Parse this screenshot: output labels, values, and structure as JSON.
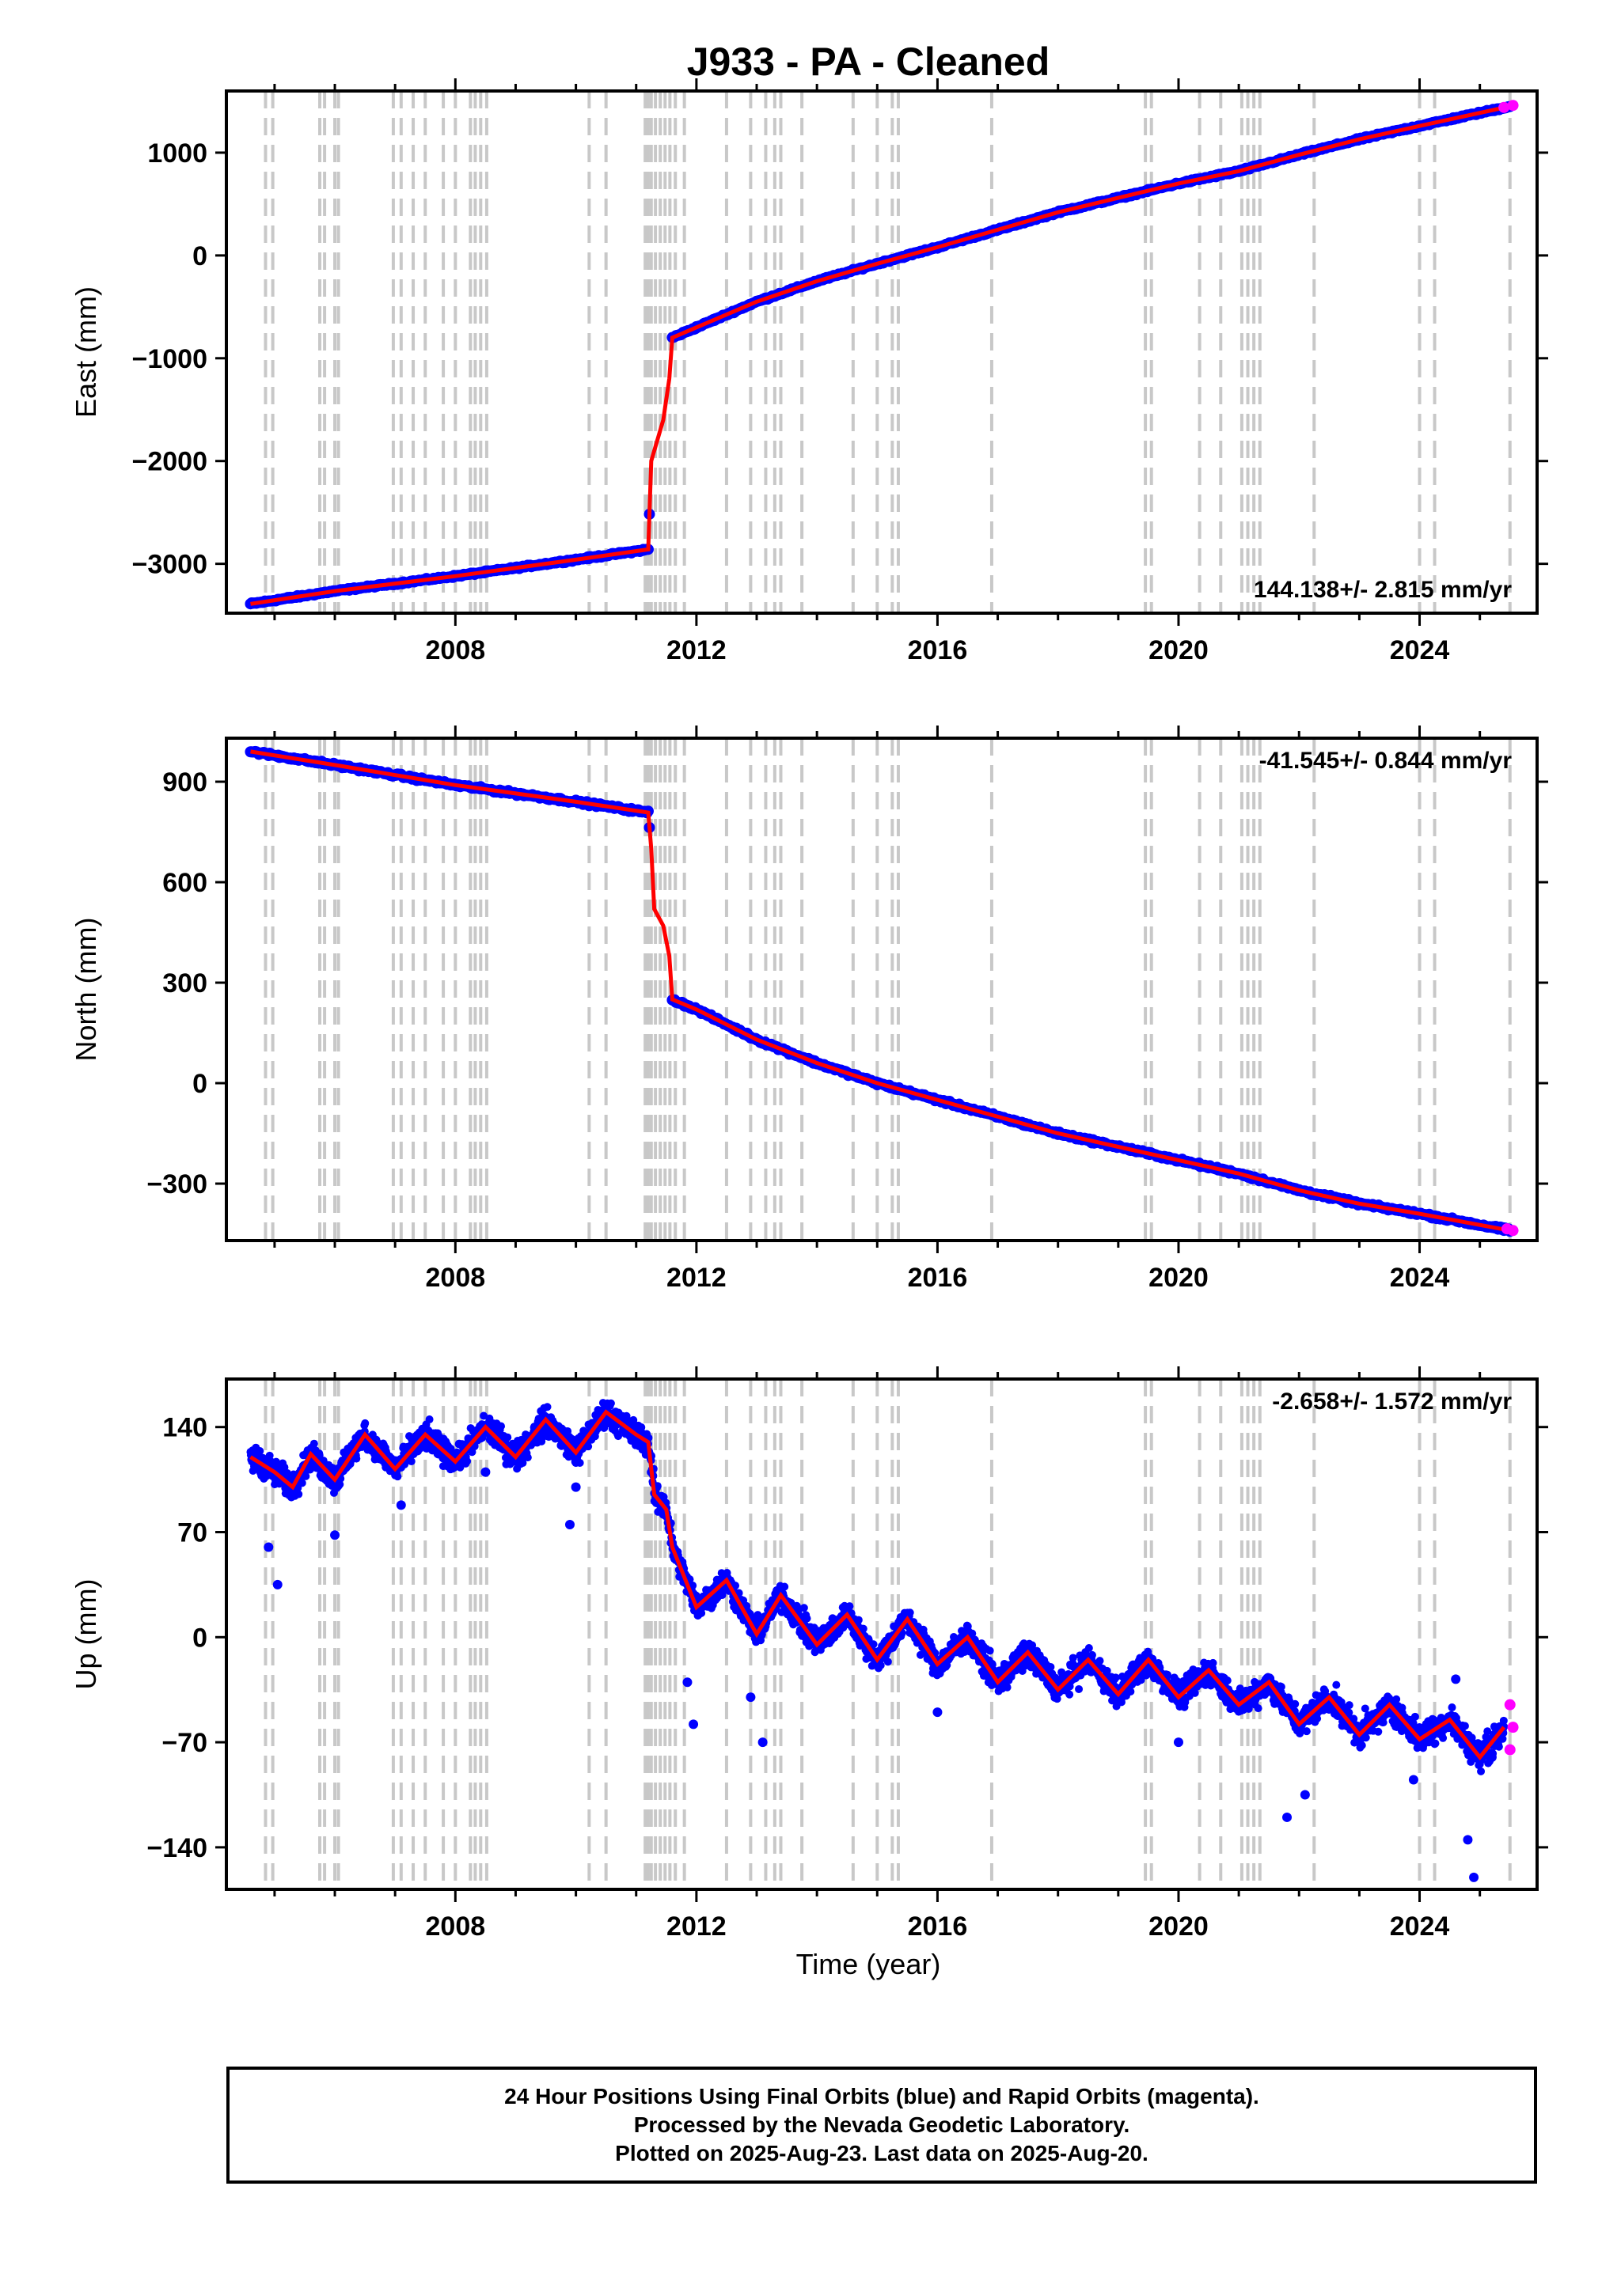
{
  "title": "J933  - PA - Cleaned",
  "x_axis": {
    "label": "Time (year)",
    "range": [
      2004.2,
      2025.95
    ],
    "ticks": [
      2008,
      2012,
      2016,
      2020,
      2024
    ],
    "tick_labels": [
      "2008",
      "2012",
      "2016",
      "2020",
      "2024"
    ]
  },
  "chart_data": [
    {
      "type": "scatter",
      "panel": "east",
      "ylabel": "East (mm)",
      "ylim": [
        -3480,
        1600
      ],
      "yticks": [
        -3000,
        -2000,
        -1000,
        0,
        1000
      ],
      "ytick_labels": [
        "−3000",
        "−2000",
        "−1000",
        "0",
        "1000"
      ],
      "rate_label": "144.138+/- 2.815 mm/yr",
      "rate_position": "bottom-right",
      "trend": [
        [
          2004.6,
          -3390
        ],
        [
          2006.0,
          -3265
        ],
        [
          2008.0,
          -3120
        ],
        [
          2010.0,
          -2960
        ],
        [
          2011.2,
          -2860
        ],
        [
          2011.2,
          -2860
        ],
        [
          2011.25,
          -2000
        ],
        [
          2011.35,
          -1800
        ],
        [
          2011.45,
          -1600
        ],
        [
          2011.55,
          -1200
        ],
        [
          2011.6,
          -800
        ],
        [
          2012.0,
          -700
        ],
        [
          2013.0,
          -450
        ],
        [
          2014.0,
          -250
        ],
        [
          2015.0,
          -80
        ],
        [
          2016.0,
          80
        ],
        [
          2017.0,
          250
        ],
        [
          2018.0,
          420
        ],
        [
          2019.0,
          560
        ],
        [
          2020.0,
          700
        ],
        [
          2021.0,
          820
        ],
        [
          2022.0,
          980
        ],
        [
          2023.0,
          1130
        ],
        [
          2024.0,
          1260
        ],
        [
          2025.5,
          1450
        ]
      ],
      "rapid_points": [
        [
          2025.4,
          1440
        ],
        [
          2025.55,
          1460
        ]
      ],
      "rate_mm_per_yr": 144.138,
      "rate_uncertainty": 2.815
    },
    {
      "type": "scatter",
      "panel": "north",
      "ylabel": "North (mm)",
      "ylim": [
        -470,
        1030
      ],
      "yticks": [
        -300,
        0,
        300,
        600,
        900
      ],
      "ytick_labels": [
        "−300",
        "0",
        "300",
        "600",
        "900"
      ],
      "rate_label": "-41.545+/- 0.844 mm/yr",
      "rate_position": "top-right",
      "trend": [
        [
          2004.6,
          990
        ],
        [
          2006.0,
          950
        ],
        [
          2008.0,
          890
        ],
        [
          2010.0,
          840
        ],
        [
          2011.2,
          808
        ],
        [
          2011.25,
          700
        ],
        [
          2011.3,
          520
        ],
        [
          2011.45,
          470
        ],
        [
          2011.55,
          380
        ],
        [
          2011.6,
          250
        ],
        [
          2012.0,
          220
        ],
        [
          2013.0,
          130
        ],
        [
          2014.0,
          60
        ],
        [
          2015.0,
          0
        ],
        [
          2016.0,
          -50
        ],
        [
          2017.0,
          -100
        ],
        [
          2018.0,
          -150
        ],
        [
          2019.0,
          -190
        ],
        [
          2020.0,
          -230
        ],
        [
          2021.0,
          -270
        ],
        [
          2022.0,
          -320
        ],
        [
          2023.0,
          -360
        ],
        [
          2024.0,
          -390
        ],
        [
          2025.5,
          -440
        ]
      ],
      "rapid_points": [
        [
          2025.45,
          -435
        ],
        [
          2025.55,
          -440
        ]
      ],
      "rate_mm_per_yr": -41.545,
      "rate_uncertainty": 0.844
    },
    {
      "type": "scatter",
      "panel": "up",
      "ylabel": "Up (mm)",
      "ylim": [
        -168,
        172
      ],
      "yticks": [
        -140,
        -70,
        0,
        70,
        140
      ],
      "ytick_labels": [
        "−140",
        "−70",
        "0",
        "70",
        "140"
      ],
      "rate_label": "-2.658+/- 1.572 mm/yr",
      "rate_position": "top-right",
      "trend_note_free": true,
      "trend": [
        [
          2004.6,
          120
        ],
        [
          2005.0,
          110
        ],
        [
          2005.3,
          100
        ],
        [
          2005.6,
          122
        ],
        [
          2006.0,
          105
        ],
        [
          2006.5,
          135
        ],
        [
          2007.0,
          112
        ],
        [
          2007.5,
          135
        ],
        [
          2008.0,
          117
        ],
        [
          2008.5,
          140
        ],
        [
          2009.0,
          120
        ],
        [
          2009.5,
          145
        ],
        [
          2010.0,
          123
        ],
        [
          2010.5,
          150
        ],
        [
          2011.0,
          135
        ],
        [
          2011.2,
          130
        ],
        [
          2011.3,
          95
        ],
        [
          2011.5,
          85
        ],
        [
          2011.6,
          60
        ],
        [
          2012.0,
          20
        ],
        [
          2012.5,
          38
        ],
        [
          2013.0,
          2
        ],
        [
          2013.4,
          28
        ],
        [
          2014.0,
          -5
        ],
        [
          2014.5,
          15
        ],
        [
          2015.0,
          -15
        ],
        [
          2015.5,
          12
        ],
        [
          2016.0,
          -18
        ],
        [
          2016.5,
          0
        ],
        [
          2017.0,
          -30
        ],
        [
          2017.5,
          -10
        ],
        [
          2018.0,
          -35
        ],
        [
          2018.5,
          -15
        ],
        [
          2019.0,
          -38
        ],
        [
          2019.5,
          -15
        ],
        [
          2020.0,
          -40
        ],
        [
          2020.5,
          -22
        ],
        [
          2021.0,
          -45
        ],
        [
          2021.5,
          -30
        ],
        [
          2022.0,
          -58
        ],
        [
          2022.5,
          -40
        ],
        [
          2023.0,
          -65
        ],
        [
          2023.5,
          -45
        ],
        [
          2024.0,
          -68
        ],
        [
          2024.5,
          -55
        ],
        [
          2025.0,
          -80
        ],
        [
          2025.4,
          -60
        ]
      ],
      "outliers": [
        [
          2004.9,
          60
        ],
        [
          2005.05,
          35
        ],
        [
          2006.0,
          68
        ],
        [
          2007.1,
          88
        ],
        [
          2008.5,
          110
        ],
        [
          2009.9,
          75
        ],
        [
          2010.0,
          100
        ],
        [
          2011.85,
          -30
        ],
        [
          2011.95,
          -58
        ],
        [
          2013.1,
          -70
        ],
        [
          2012.9,
          -40
        ],
        [
          2016.0,
          -50
        ],
        [
          2020.0,
          -70
        ],
        [
          2022.1,
          -105
        ],
        [
          2021.8,
          -120
        ],
        [
          2023.9,
          -95
        ],
        [
          2024.8,
          -135
        ],
        [
          2024.9,
          -160
        ],
        [
          2024.6,
          -28
        ],
        [
          2025.2,
          -80
        ]
      ],
      "rapid_points": [
        [
          2025.5,
          -45
        ],
        [
          2025.55,
          -60
        ],
        [
          2025.5,
          -75
        ]
      ],
      "rate_mm_per_yr": -2.658,
      "rate_uncertainty": 1.572
    }
  ],
  "vertical_lines_years": [
    2004.85,
    2004.97,
    2005.75,
    2005.83,
    2006.0,
    2006.06,
    2006.97,
    2007.1,
    2007.3,
    2007.5,
    2007.8,
    2008.0,
    2008.25,
    2008.33,
    2008.42,
    2008.52,
    2010.22,
    2010.5,
    2011.15,
    2011.2,
    2011.25,
    2011.32,
    2011.4,
    2011.48,
    2011.56,
    2011.65,
    2011.8,
    2012.5,
    2012.9,
    2013.15,
    2013.3,
    2013.4,
    2013.75,
    2014.6,
    2015.0,
    2015.25,
    2015.35,
    2016.9,
    2019.45,
    2019.55,
    2020.35,
    2020.7,
    2021.05,
    2021.15,
    2021.25,
    2021.35,
    2022.25,
    2024.0,
    2024.25,
    2025.5
  ],
  "colors": {
    "final_orbits": "#0000ff",
    "rapid_orbits": "#ff00ff",
    "trend": "#ff0000",
    "vlines": "#c8c8c8"
  },
  "caption": {
    "line1": "24 Hour Positions Using Final Orbits (blue) and Rapid Orbits (magenta).",
    "line2": "Processed by the Nevada Geodetic Laboratory.",
    "line3": "Plotted on 2025-Aug-23. Last data on 2025-Aug-20."
  }
}
